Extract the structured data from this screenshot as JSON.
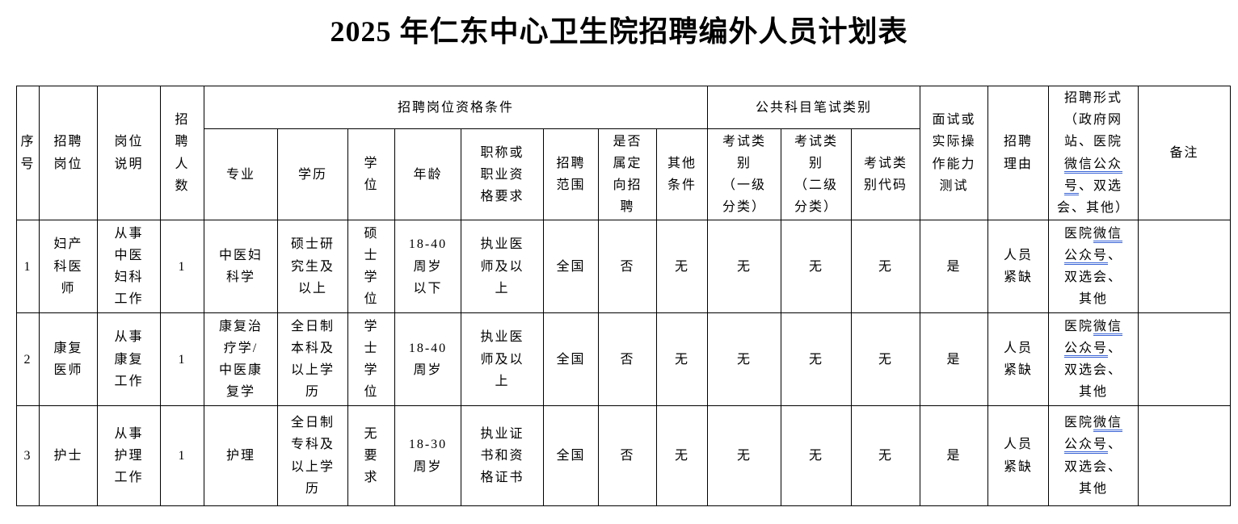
{
  "title": "2025 年仁东中心卫生院招聘编外人员计划表",
  "colors": {
    "text": "#000000",
    "table_border": "#000000",
    "grammar_underline": "#3a64d6",
    "background": "#ffffff"
  },
  "table": {
    "group_headers": {
      "qualification": "招聘岗位资格条件",
      "written_test": "公共科目笔试类别"
    },
    "headers": {
      "seq": "序\n号",
      "post": "招聘\n岗位",
      "post_desc": "岗位\n说明",
      "headcount": "招\n聘\n人\n数",
      "major": "专业",
      "education": "学历",
      "degree": "学\n位",
      "age": "年龄",
      "title_req": "职称或\n职业资\n格要求",
      "scope": "招聘\n范围",
      "targeted": "是否\n属定\n向招\n聘",
      "other": "其他\n条件",
      "exam_cat1": "考试类\n别\n（一级\n分类）",
      "exam_cat2": "考试类\n别\n（二级\n分类）",
      "exam_code": "考试类\n别代码",
      "interview": "面试或\n实际操\n作能力\n测试",
      "reason": "招聘\n理由",
      "remark": "备注",
      "form_segments": [
        {
          "t": "招聘形式\n（政府网\n站、医院\n"
        },
        {
          "t": "微信公众",
          "u": true
        },
        {
          "t": "\n"
        },
        {
          "t": "号",
          "u": true
        },
        {
          "t": "、双选\n会、其他）"
        }
      ]
    },
    "rows": [
      {
        "cells": [
          "1",
          "妇产\n科医\n师",
          "从事\n中医\n妇科\n工作",
          "1",
          "中医妇\n科学",
          "硕士研\n究生及\n以上",
          "硕\n士\n学\n位",
          "18-40\n周岁\n以下",
          "执业医\n师及以\n上",
          "全国",
          "否",
          "无",
          "无",
          "无",
          "无",
          "是",
          "人员\n紧缺"
        ],
        "form_segments": [
          {
            "t": "医院"
          },
          {
            "t": "微信",
            "u": true
          },
          {
            "t": "\n"
          },
          {
            "t": "公众号",
            "u": true
          },
          {
            "t": "、\n双选会、\n其他"
          }
        ],
        "remark": ""
      },
      {
        "cells": [
          "2",
          "康复\n医师",
          "从事\n康复\n工作",
          "1",
          "康复治\n疗学/\n中医康\n复学",
          "全日制\n本科及\n以上学\n历",
          "学\n士\n学\n位",
          "18-40\n周岁",
          "执业医\n师及以\n上",
          "全国",
          "否",
          "无",
          "无",
          "无",
          "无",
          "是",
          "人员\n紧缺"
        ],
        "form_segments": [
          {
            "t": "医院"
          },
          {
            "t": "微信",
            "u": true
          },
          {
            "t": "\n"
          },
          {
            "t": "公众号",
            "u": true
          },
          {
            "t": "、\n双选会、\n其他"
          }
        ],
        "remark": ""
      },
      {
        "cells": [
          "3",
          "护士",
          "从事\n护理\n工作",
          "1",
          "护理",
          "全日制\n专科及\n以上学\n历",
          "无\n要\n求",
          "18-30\n周岁",
          "执业证\n书和资\n格证书",
          "全国",
          "否",
          "无",
          "无",
          "无",
          "无",
          "是",
          "人员\n紧缺"
        ],
        "form_segments": [
          {
            "t": "医院"
          },
          {
            "t": "微信",
            "u": true
          },
          {
            "t": "\n"
          },
          {
            "t": "公众号",
            "u": true
          },
          {
            "t": "、\n双选会、\n其他"
          }
        ],
        "remark": ""
      }
    ]
  }
}
